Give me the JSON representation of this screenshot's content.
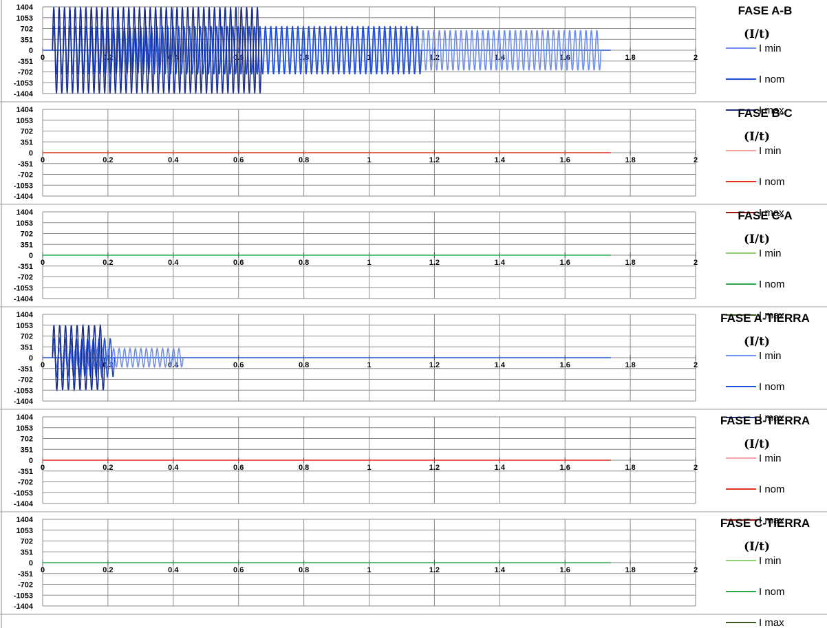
{
  "chart_data": [
    {
      "type": "line",
      "title": "FASE A-B",
      "unit": "(I/t)",
      "yticks": [
        "1404",
        "1053",
        "702",
        "351",
        "0",
        "-351",
        "-702",
        "-1053",
        "-1404"
      ],
      "ylim": [
        -1404,
        1404
      ],
      "xticks": [
        "0",
        "0.2",
        "0.4",
        "0.6",
        "0.8",
        "1",
        "1.2",
        "1.4",
        "1.6",
        "1.8",
        "2"
      ],
      "xlim": [
        0,
        2
      ],
      "baseline_end": 1.74,
      "series": [
        {
          "name": "I min",
          "color": "#6f8fe8",
          "t_start": 0.03,
          "t_end": 1.71,
          "amplitude": 650,
          "cycles": 101
        },
        {
          "name": "I nom",
          "color": "#1f4fd8",
          "t_start": 0.03,
          "t_end": 1.16,
          "amplitude": 780,
          "cycles": 68
        },
        {
          "name": "I max",
          "color": "#1b2f8a",
          "t_start": 0.03,
          "t_end": 0.67,
          "amplitude": 1400,
          "cycles": 39
        }
      ]
    },
    {
      "type": "line",
      "title": "FASE B-C",
      "unit": "(I/t)",
      "yticks": [
        "1404",
        "1053",
        "702",
        "351",
        "0",
        "-351",
        "-702",
        "-1053",
        "-1404"
      ],
      "ylim": [
        -1404,
        1404
      ],
      "xticks": [
        "0",
        "0.2",
        "0.4",
        "0.6",
        "0.8",
        "1",
        "1.2",
        "1.4",
        "1.6",
        "1.8",
        "2"
      ],
      "xlim": [
        0,
        2
      ],
      "baseline_end": 1.74,
      "series": [
        {
          "name": "I min",
          "color": "#f4a0a0",
          "t_start": 0,
          "t_end": 1.74,
          "amplitude": 0,
          "cycles": 0
        },
        {
          "name": "I nom",
          "color": "#e03020",
          "t_start": 0,
          "t_end": 1.74,
          "amplitude": 0,
          "cycles": 0
        },
        {
          "name": "I max",
          "color": "#a01010",
          "t_start": 0,
          "t_end": 1.74,
          "amplitude": 0,
          "cycles": 0
        }
      ]
    },
    {
      "type": "line",
      "title": "FASE C-A",
      "unit": "(I/t)",
      "yticks": [
        "1404",
        "1053",
        "702",
        "351",
        "0",
        "-351",
        "-702",
        "-1053",
        "-1404"
      ],
      "ylim": [
        -1404,
        1404
      ],
      "xticks": [
        "0",
        "0.2",
        "0.4",
        "0.6",
        "0.8",
        "1",
        "1.2",
        "1.4",
        "1.6",
        "1.8",
        "2"
      ],
      "xlim": [
        0,
        2
      ],
      "baseline_end": 1.74,
      "series": [
        {
          "name": "I min",
          "color": "#8fd070",
          "t_start": 0,
          "t_end": 1.74,
          "amplitude": 0,
          "cycles": 0
        },
        {
          "name": "I nom",
          "color": "#2aa84a",
          "t_start": 0,
          "t_end": 1.74,
          "amplitude": 0,
          "cycles": 0
        },
        {
          "name": "I max",
          "color": "#3a5a20",
          "t_start": 0,
          "t_end": 1.74,
          "amplitude": 0,
          "cycles": 0
        }
      ]
    },
    {
      "type": "line",
      "title": "FASE A-TIERRA",
      "unit": "(I/t)",
      "yticks": [
        "1404",
        "1053",
        "702",
        "351",
        "0",
        "-351",
        "-702",
        "-1053",
        "-1404"
      ],
      "ylim": [
        -1404,
        1404
      ],
      "xticks": [
        "0",
        "0.2",
        "0.4",
        "0.6",
        "0.8",
        "1",
        "1.2",
        "1.4",
        "1.6",
        "1.8",
        "2"
      ],
      "xlim": [
        0,
        2
      ],
      "baseline_end": 1.74,
      "series": [
        {
          "name": "I min",
          "color": "#6f8fe8",
          "t_start": 0.03,
          "t_end": 0.43,
          "amplitude": 300,
          "cycles": 24
        },
        {
          "name": "I nom",
          "color": "#1f4fd8",
          "t_start": 0.03,
          "t_end": 0.22,
          "amplitude": 620,
          "cycles": 11
        },
        {
          "name": "I max",
          "color": "#1b2f8a",
          "t_start": 0.03,
          "t_end": 0.19,
          "amplitude": 1050,
          "cycles": 9
        }
      ]
    },
    {
      "type": "line",
      "title": "FASE B-TIERRA",
      "unit": "(I/t)",
      "yticks": [
        "1404",
        "1053",
        "702",
        "351",
        "0",
        "-351",
        "-702",
        "-1053",
        "-1404"
      ],
      "ylim": [
        -1404,
        1404
      ],
      "xticks": [
        "0",
        "0.2",
        "0.4",
        "0.6",
        "0.8",
        "1",
        "1.2",
        "1.4",
        "1.6",
        "1.8",
        "2"
      ],
      "xlim": [
        0,
        2
      ],
      "baseline_end": 1.74,
      "series": [
        {
          "name": "I min",
          "color": "#f4a0a0",
          "t_start": 0,
          "t_end": 1.74,
          "amplitude": 0,
          "cycles": 0
        },
        {
          "name": "I nom",
          "color": "#e03020",
          "t_start": 0,
          "t_end": 1.74,
          "amplitude": 0,
          "cycles": 0
        },
        {
          "name": "I max",
          "color": "#a01010",
          "t_start": 0,
          "t_end": 1.74,
          "amplitude": 0,
          "cycles": 0
        }
      ]
    },
    {
      "type": "line",
      "title": "FASE C-TIERRA",
      "unit": "(I/t)",
      "yticks": [
        "1404",
        "1053",
        "702",
        "351",
        "0",
        "-351",
        "-702",
        "-1053",
        "-1404"
      ],
      "ylim": [
        -1404,
        1404
      ],
      "xticks": [
        "0",
        "0.2",
        "0.4",
        "0.6",
        "0.8",
        "1",
        "1.2",
        "1.4",
        "1.6",
        "1.8",
        "2"
      ],
      "xlim": [
        0,
        2
      ],
      "baseline_end": 1.74,
      "series": [
        {
          "name": "I min",
          "color": "#8fd070",
          "t_start": 0,
          "t_end": 1.74,
          "amplitude": 0,
          "cycles": 0
        },
        {
          "name": "I nom",
          "color": "#2aa84a",
          "t_start": 0,
          "t_end": 1.74,
          "amplitude": 0,
          "cycles": 0
        },
        {
          "name": "I max",
          "color": "#3a5a20",
          "t_start": 0,
          "t_end": 1.74,
          "amplitude": 0,
          "cycles": 0
        }
      ]
    }
  ]
}
